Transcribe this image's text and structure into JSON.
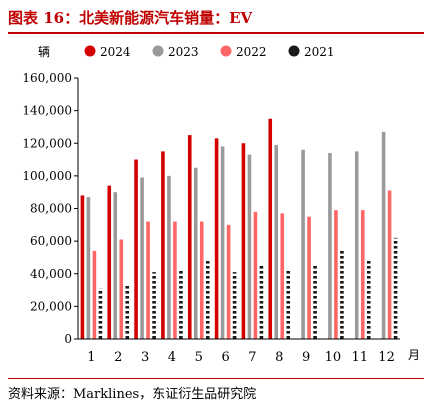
{
  "title": "图表 16：北美新能源汽车销量：EV",
  "source": "资料来源：Marklines，东证衍生品研究院",
  "chart_data": {
    "type": "bar",
    "ylabel": "辆",
    "xlabel": "月",
    "ylim": [
      0,
      160000
    ],
    "yticks": [
      "0",
      "20,000",
      "40,000",
      "60,000",
      "80,000",
      "100,000",
      "120,000",
      "140,000",
      "160,000"
    ],
    "ytick_values": [
      0,
      20000,
      40000,
      60000,
      80000,
      100000,
      120000,
      140000,
      160000
    ],
    "categories": [
      "1",
      "2",
      "3",
      "4",
      "5",
      "6",
      "7",
      "8",
      "9",
      "10",
      "11",
      "12"
    ],
    "legend_position": "top",
    "series": [
      {
        "name": "2024",
        "color": "#d40000",
        "pattern": "solid",
        "values": [
          88000,
          94000,
          110000,
          115000,
          125000,
          123000,
          120000,
          135000,
          null,
          null,
          null,
          null
        ]
      },
      {
        "name": "2023",
        "color": "#9a9a9a",
        "pattern": "solid",
        "values": [
          87000,
          90000,
          99000,
          100000,
          105000,
          118000,
          113000,
          119000,
          116000,
          114000,
          115000,
          127000
        ]
      },
      {
        "name": "2022",
        "color": "#ff6666",
        "pattern": "solid",
        "values": [
          54000,
          61000,
          72000,
          72000,
          72000,
          70000,
          78000,
          77000,
          75000,
          79000,
          79000,
          91000
        ]
      },
      {
        "name": "2021",
        "color": "#1a1a1a",
        "pattern": "hatch",
        "values": [
          31000,
          33000,
          41000,
          42000,
          48000,
          41000,
          45000,
          43000,
          45000,
          54000,
          49000,
          62000
        ]
      }
    ]
  }
}
